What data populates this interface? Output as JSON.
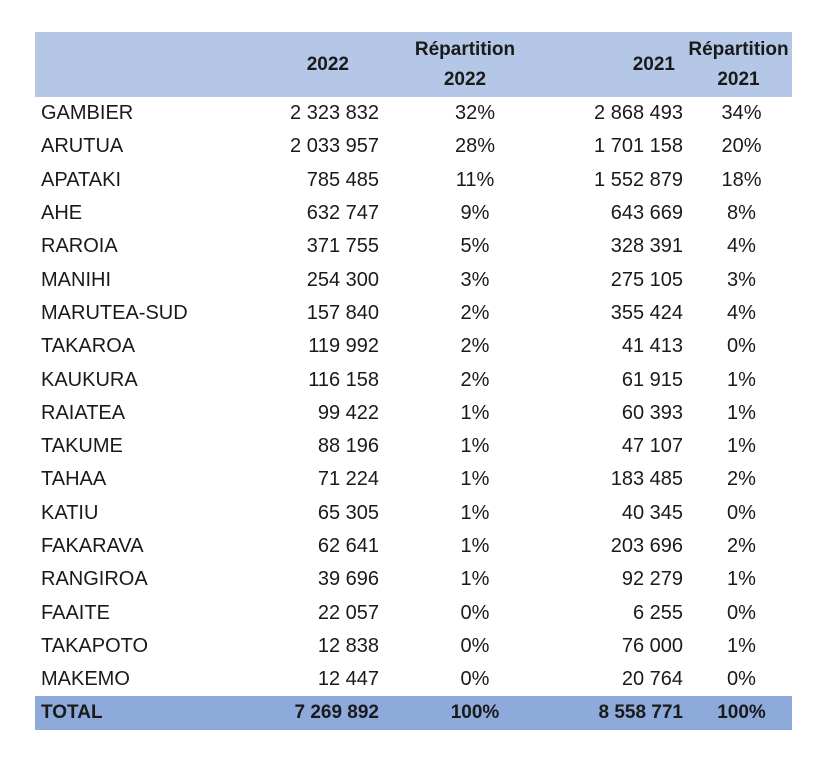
{
  "header": {
    "col_name": "",
    "col_2022": "2022",
    "col_rep2022_line1": "Répartition",
    "col_rep2022_line2": "2022",
    "col_2021": "2021",
    "col_rep2021_line1": "Répartition",
    "col_rep2021_line2": "2021"
  },
  "rows": [
    {
      "name": "GAMBIER",
      "v2022": "2 323 832",
      "p2022": "32%",
      "v2021": "2 868 493",
      "p2021": "34%"
    },
    {
      "name": "ARUTUA",
      "v2022": "2 033 957",
      "p2022": "28%",
      "v2021": "1 701 158",
      "p2021": "20%"
    },
    {
      "name": "APATAKI",
      "v2022": "785 485",
      "p2022": "11%",
      "v2021": "1 552 879",
      "p2021": "18%"
    },
    {
      "name": "AHE",
      "v2022": "632 747",
      "p2022": "9%",
      "v2021": "643 669",
      "p2021": "8%"
    },
    {
      "name": "RAROIA",
      "v2022": "371 755",
      "p2022": "5%",
      "v2021": "328 391",
      "p2021": "4%"
    },
    {
      "name": "MANIHI",
      "v2022": "254 300",
      "p2022": "3%",
      "v2021": "275 105",
      "p2021": "3%"
    },
    {
      "name": "MARUTEA-SUD",
      "v2022": "157 840",
      "p2022": "2%",
      "v2021": "355 424",
      "p2021": "4%"
    },
    {
      "name": "TAKAROA",
      "v2022": "119 992",
      "p2022": "2%",
      "v2021": "41 413",
      "p2021": "0%"
    },
    {
      "name": "KAUKURA",
      "v2022": "116 158",
      "p2022": "2%",
      "v2021": "61 915",
      "p2021": "1%"
    },
    {
      "name": "RAIATEA",
      "v2022": "99 422",
      "p2022": "1%",
      "v2021": "60 393",
      "p2021": "1%"
    },
    {
      "name": "TAKUME",
      "v2022": "88 196",
      "p2022": "1%",
      "v2021": "47 107",
      "p2021": "1%"
    },
    {
      "name": "TAHAA",
      "v2022": "71 224",
      "p2022": "1%",
      "v2021": "183 485",
      "p2021": "2%"
    },
    {
      "name": "KATIU",
      "v2022": "65 305",
      "p2022": "1%",
      "v2021": "40 345",
      "p2021": "0%"
    },
    {
      "name": "FAKARAVA",
      "v2022": "62 641",
      "p2022": "1%",
      "v2021": "203 696",
      "p2021": "2%"
    },
    {
      "name": "RANGIROA",
      "v2022": "39 696",
      "p2022": "1%",
      "v2021": "92 279",
      "p2021": "1%"
    },
    {
      "name": "FAAITE",
      "v2022": "22 057",
      "p2022": "0%",
      "v2021": "6 255",
      "p2021": "0%"
    },
    {
      "name": "TAKAPOTO",
      "v2022": "12 838",
      "p2022": "0%",
      "v2021": "76 000",
      "p2021": "1%"
    },
    {
      "name": "MAKEMO",
      "v2022": "12 447",
      "p2022": "0%",
      "v2021": "20 764",
      "p2021": "0%"
    }
  ],
  "total": {
    "name": "TOTAL",
    "v2022": "7 269 892",
    "p2022": "100%",
    "v2021": "8 558 771",
    "p2021": "100%"
  },
  "colors": {
    "header_bg": "#b4c7e7",
    "total_bg": "#8eaadb"
  }
}
